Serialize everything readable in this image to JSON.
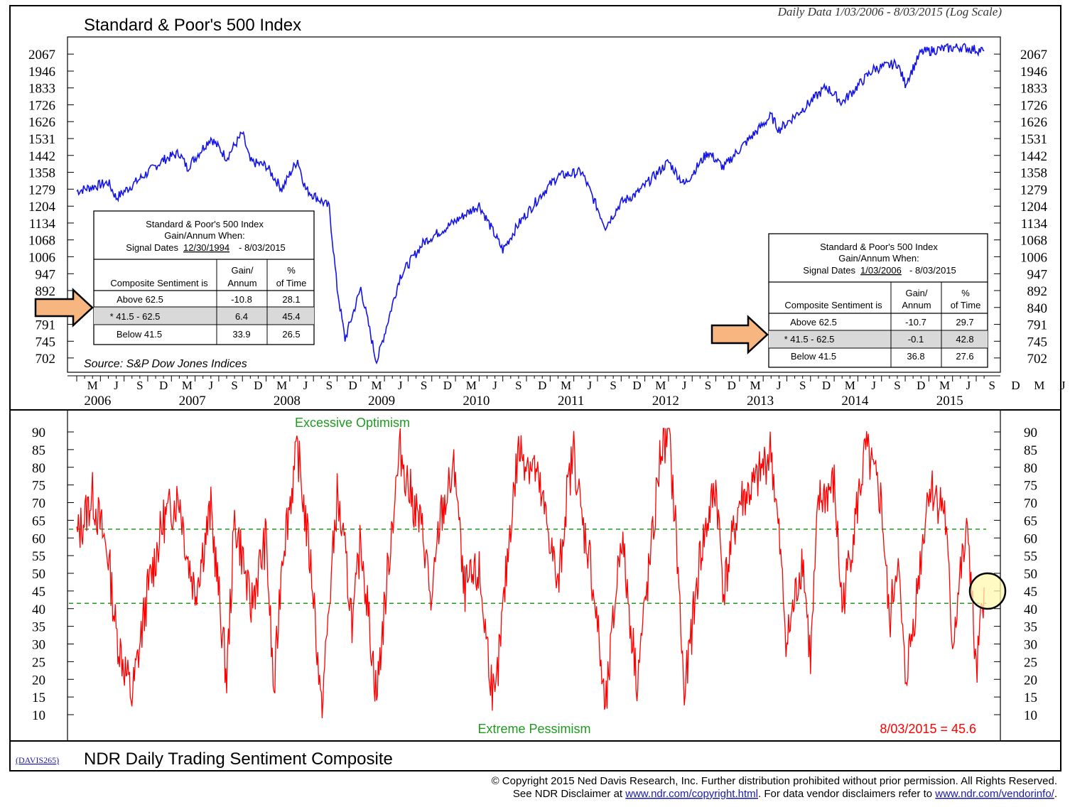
{
  "top_panel": {
    "title": "Standard & Poor's 500 Index",
    "subtitle": "Daily Data 1/03/2006 - 8/03/2015 (Log Scale)",
    "y_ticks": [
      "2067",
      "1946",
      "1833",
      "1726",
      "1626",
      "1531",
      "1442",
      "1358",
      "1279",
      "1204",
      "1134",
      "1068",
      "1006",
      "947",
      "892",
      "840",
      "791",
      "745",
      "702"
    ],
    "source": "Source: S&P Dow Jones Indices",
    "table_left": {
      "title_line1": "Standard & Poor's 500 Index",
      "title_line2": "Gain/Annum When:",
      "signal_label": "Signal Dates",
      "signal_start": "12/30/1994",
      "signal_end": "- 8/03/2015",
      "col_header_1": "Composite Sentiment is",
      "col_header_2a": "Gain/",
      "col_header_2b": "Annum",
      "col_header_3a": "%",
      "col_header_3b": "of Time",
      "rows": [
        {
          "label": "Above 62.5",
          "gain": "-10.8",
          "pct": "28.1"
        },
        {
          "label": "* 41.5 - 62.5",
          "gain": "6.4",
          "pct": "45.4"
        },
        {
          "label": "Below 41.5",
          "gain": "33.9",
          "pct": "26.5"
        }
      ]
    },
    "table_right": {
      "title_line1": "Standard & Poor's 500 Index",
      "title_line2": "Gain/Annum When:",
      "signal_label": "Signal Dates",
      "signal_start": "1/03/2006",
      "signal_end": "- 8/03/2015",
      "col_header_1": "Composite Sentiment is",
      "col_header_2a": "Gain/",
      "col_header_2b": "Annum",
      "col_header_3a": "%",
      "col_header_3b": "of Time",
      "rows": [
        {
          "label": "Above 62.5",
          "gain": "-10.7",
          "pct": "29.7"
        },
        {
          "label": "* 41.5 - 62.5",
          "gain": "-0.1",
          "pct": "42.8"
        },
        {
          "label": "Below 41.5",
          "gain": "36.8",
          "pct": "27.6"
        }
      ]
    }
  },
  "x_axis": {
    "month_labels": [
      "M",
      "J",
      "S",
      "D",
      "M",
      "J",
      "S",
      "D",
      "M",
      "J",
      "S",
      "D",
      "M",
      "J",
      "S",
      "D",
      "M",
      "J",
      "S",
      "D",
      "M",
      "J",
      "S",
      "D",
      "M",
      "J",
      "S",
      "D",
      "M",
      "J",
      "S",
      "D",
      "M",
      "J",
      "S",
      "D",
      "M",
      "J",
      "S",
      "D",
      "M",
      "J"
    ],
    "year_labels": [
      "2006",
      "2007",
      "2008",
      "2009",
      "2010",
      "2011",
      "2012",
      "2013",
      "2014",
      "2015"
    ]
  },
  "bottom_panel": {
    "title": "NDR Daily Trading Sentiment Composite",
    "code": "(DAVIS265)",
    "y_ticks": [
      "90",
      "85",
      "80",
      "75",
      "70",
      "65",
      "60",
      "55",
      "50",
      "45",
      "40",
      "35",
      "30",
      "25",
      "20",
      "15",
      "10"
    ],
    "upper_label": "Excessive Optimism",
    "lower_label": "Extreme Pessimism",
    "latest": "8/03/2015 = 45.6",
    "upper_threshold": 62.5,
    "lower_threshold": 41.5
  },
  "footer": {
    "line1": "© Copyright 2015 Ned Davis Research, Inc.  Further distribution prohibited without prior permission.  All Rights Reserved.",
    "line2_prefix": "See NDR Disclaimer at ",
    "link1": "www.ndr.com/copyright.html",
    "line2_mid": ". For data vendor disclaimers refer to ",
    "link2": "www.ndr.com/vendorinfo/",
    "line2_suffix": "."
  },
  "chart_data": [
    {
      "type": "line",
      "title": "Standard & Poor's 500 Index",
      "subtitle": "Daily Data 1/03/2006 - 8/03/2015 (Log Scale)",
      "scale": "log",
      "ylim": [
        700,
        2110
      ],
      "color": "#1414e6",
      "x": [
        "2006-01",
        "2006-05",
        "2006-06",
        "2006-12",
        "2007-02",
        "2007-03",
        "2007-06",
        "2007-08",
        "2007-10",
        "2007-11",
        "2008-01",
        "2008-03",
        "2008-05",
        "2008-06",
        "2008-09",
        "2008-10",
        "2008-11",
        "2009-01",
        "2009-03",
        "2009-06",
        "2009-09",
        "2009-12",
        "2010-04",
        "2010-07",
        "2010-09",
        "2010-12",
        "2011-02",
        "2011-05",
        "2011-08",
        "2011-10",
        "2011-12",
        "2012-04",
        "2012-06",
        "2012-09",
        "2012-11",
        "2012-12",
        "2013-05",
        "2013-06",
        "2013-09",
        "2013-12",
        "2014-01",
        "2014-02",
        "2014-06",
        "2014-09",
        "2014-10",
        "2014-12",
        "2015-02",
        "2015-05",
        "2015-08"
      ],
      "values": [
        1270,
        1310,
        1240,
        1420,
        1455,
        1380,
        1535,
        1430,
        1560,
        1410,
        1390,
        1280,
        1420,
        1280,
        1200,
        900,
        750,
        900,
        690,
        940,
        1060,
        1120,
        1210,
        1030,
        1130,
        1260,
        1340,
        1360,
        1120,
        1220,
        1260,
        1410,
        1300,
        1460,
        1380,
        1430,
        1660,
        1580,
        1700,
        1840,
        1790,
        1740,
        1960,
        2000,
        1860,
        2080,
        2100,
        2120,
        2090
      ]
    },
    {
      "type": "line",
      "title": "NDR Daily Trading Sentiment Composite",
      "ylim": [
        7,
        92
      ],
      "color": "#ff0000",
      "reference_lines": [
        62.5,
        41.5
      ],
      "x": [
        "2006-01",
        "2006-03",
        "2006-05",
        "2006-06",
        "2006-08",
        "2006-10",
        "2006-12",
        "2007-02",
        "2007-03",
        "2007-04",
        "2007-06",
        "2007-08",
        "2007-09",
        "2007-10",
        "2007-11",
        "2008-01",
        "2008-02",
        "2008-03",
        "2008-05",
        "2008-06",
        "2008-07",
        "2008-08",
        "2008-10",
        "2008-11",
        "2008-12",
        "2009-01",
        "2009-03",
        "2009-05",
        "2009-06",
        "2009-07",
        "2009-09",
        "2009-10",
        "2009-11",
        "2010-01",
        "2010-02",
        "2010-04",
        "2010-05",
        "2010-06",
        "2010-08",
        "2010-09",
        "2010-11",
        "2011-01",
        "2011-02",
        "2011-03",
        "2011-04",
        "2011-05",
        "2011-06",
        "2011-07",
        "2011-08",
        "2011-10",
        "2011-11",
        "2011-12",
        "2012-02",
        "2012-03",
        "2012-04",
        "2012-05",
        "2012-06",
        "2012-08",
        "2012-10",
        "2012-11",
        "2012-12",
        "2013-01",
        "2013-03",
        "2013-05",
        "2013-06",
        "2013-07",
        "2013-09",
        "2013-10",
        "2013-11",
        "2014-01",
        "2014-02",
        "2014-03",
        "2014-05",
        "2014-07",
        "2014-08",
        "2014-09",
        "2014-10",
        "2014-11",
        "2014-12",
        "2015-01",
        "2015-03",
        "2015-04",
        "2015-05",
        "2015-06",
        "2015-07",
        "2015-08"
      ],
      "values": [
        60,
        72,
        55,
        33,
        15,
        45,
        65,
        72,
        55,
        45,
        68,
        20,
        65,
        55,
        40,
        60,
        15,
        55,
        85,
        65,
        45,
        10,
        72,
        55,
        35,
        60,
        15,
        65,
        85,
        75,
        60,
        40,
        65,
        80,
        45,
        50,
        30,
        12,
        65,
        85,
        80,
        60,
        45,
        70,
        85,
        65,
        55,
        35,
        10,
        62,
        40,
        20,
        60,
        85,
        90,
        60,
        15,
        55,
        75,
        45,
        58,
        70,
        75,
        85,
        60,
        30,
        55,
        25,
        70,
        75,
        40,
        55,
        85,
        70,
        35,
        55,
        20,
        35,
        55,
        75,
        68,
        30,
        50,
        62,
        20,
        46
      ]
    }
  ]
}
